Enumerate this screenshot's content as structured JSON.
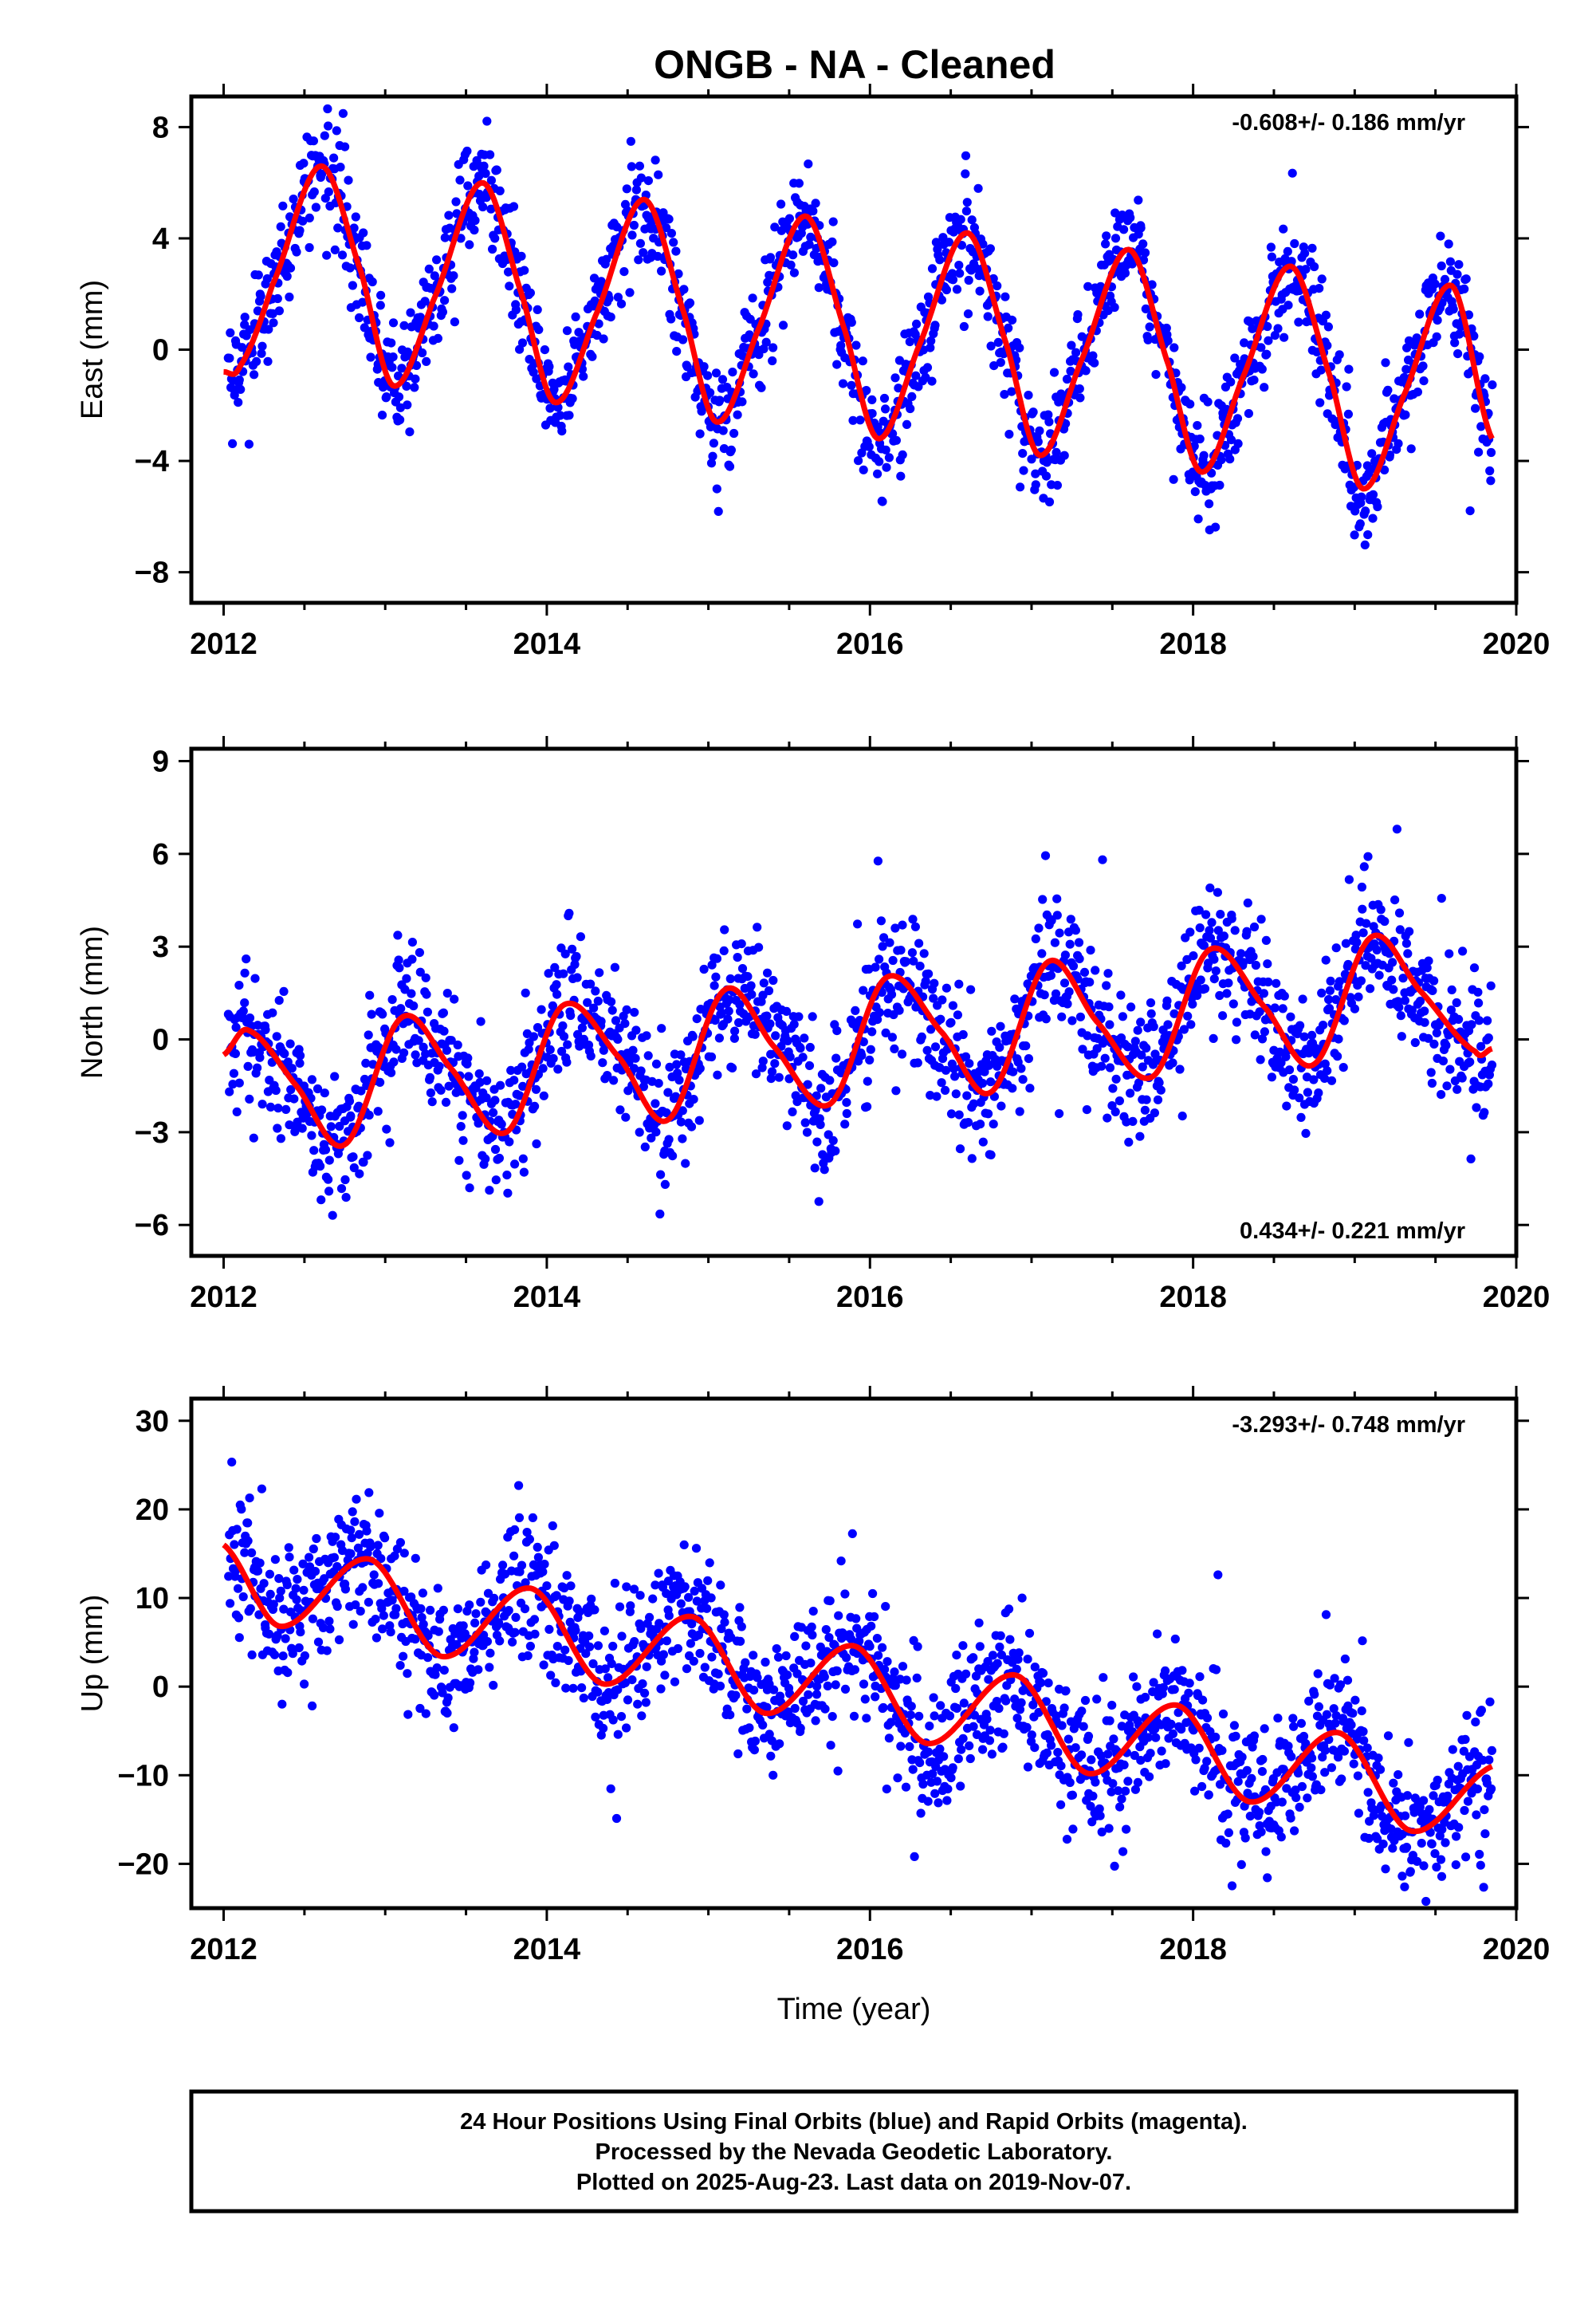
{
  "chart_data": {
    "type": "scatter",
    "title": "ONGB  - NA - Cleaned",
    "xlabel": "Time (year)",
    "xlim": [
      2011.8,
      2020.0
    ],
    "x_ticks": [
      "2012",
      "2014",
      "2016",
      "2018",
      "2020"
    ],
    "grid": false,
    "colors": {
      "points": "#0000ff",
      "fit": "#ff0000",
      "frame": "#000000"
    },
    "panels": [
      {
        "ylabel": "East (mm)",
        "ylim": [
          -9.1,
          9.1
        ],
        "y_ticks": [
          "8",
          "4",
          "0",
          "-4",
          "-8"
        ],
        "rate": "-0.608+/- 0.186 mm/yr",
        "rate_position": "top-right",
        "trend_mm_per_yr": -0.608,
        "fit": {
          "x": [
            2012.0,
            2012.1,
            2012.3,
            2012.6,
            2012.85,
            2013.05,
            2013.3,
            2013.6,
            2013.85,
            2014.05,
            2014.3,
            2014.6,
            2014.85,
            2015.05,
            2015.3,
            2015.6,
            2015.85,
            2016.05,
            2016.3,
            2016.6,
            2016.85,
            2017.05,
            2017.3,
            2017.6,
            2017.85,
            2018.05,
            2018.3,
            2018.6,
            2018.85,
            2019.05,
            2019.3,
            2019.6,
            2019.85
          ],
          "y": [
            -0.8,
            -0.6,
            2.3,
            6.6,
            2.8,
            -1.3,
            1.8,
            6.0,
            1.9,
            -1.9,
            1.2,
            5.4,
            1.3,
            -2.6,
            0.6,
            4.8,
            0.6,
            -3.2,
            0.1,
            4.2,
            0.1,
            -3.8,
            -0.5,
            3.6,
            -0.6,
            -4.4,
            -1.1,
            3.0,
            -1.0,
            -5.0,
            -1.7,
            2.3,
            -3.2
          ]
        },
        "scatter_sd_mm": 1.0
      },
      {
        "ylabel": "North (mm)",
        "ylim": [
          -7.0,
          9.4
        ],
        "y_ticks": [
          "9",
          "6",
          "3",
          "0",
          "-3",
          "-6"
        ],
        "rate": "0.434+/- 0.221 mm/yr",
        "rate_position": "bottom-right",
        "trend_mm_per_yr": 0.434,
        "fit": {
          "x": [
            2012.0,
            2012.15,
            2012.45,
            2012.75,
            2013.1,
            2013.4,
            2013.75,
            2014.1,
            2014.45,
            2014.75,
            2015.1,
            2015.4,
            2015.75,
            2016.1,
            2016.45,
            2016.75,
            2017.1,
            2017.4,
            2017.75,
            2018.1,
            2018.45,
            2018.75,
            2019.1,
            2019.4,
            2019.75,
            2019.85
          ],
          "y": [
            -0.5,
            0.3,
            -1.5,
            -3.4,
            0.7,
            -0.9,
            -3.0,
            1.1,
            -0.6,
            -2.6,
            1.6,
            -0.2,
            -2.1,
            2.0,
            0.2,
            -1.7,
            2.5,
            0.6,
            -1.2,
            2.9,
            1.0,
            -0.8,
            3.3,
            1.6,
            -0.4,
            -0.3
          ]
        },
        "scatter_sd_mm": 1.1
      },
      {
        "ylabel": "Up (mm)",
        "ylim": [
          -25.0,
          32.5
        ],
        "y_ticks": [
          "30",
          "20",
          "10",
          "0",
          "-10",
          "-20"
        ],
        "rate": "-3.293+/- 0.748 mm/yr",
        "rate_position": "top-right",
        "trend_mm_per_yr": -3.293,
        "fit": {
          "x": [
            2012.0,
            2012.35,
            2012.9,
            2013.35,
            2013.9,
            2014.35,
            2014.9,
            2015.35,
            2015.9,
            2016.35,
            2016.9,
            2017.35,
            2017.9,
            2018.35,
            2018.9,
            2019.35,
            2019.85
          ],
          "y": [
            16.0,
            6.8,
            14.4,
            3.4,
            11.1,
            0.3,
            7.9,
            -3.0,
            4.6,
            -6.4,
            1.3,
            -9.8,
            -2.1,
            -13.0,
            -5.2,
            -16.3,
            -9.0
          ]
        },
        "scatter_sd_mm": 4.0
      }
    ]
  },
  "footer": {
    "line1": "24 Hour Positions Using Final Orbits (blue) and Rapid Orbits (magenta).",
    "line2": "Processed by the Nevada Geodetic Laboratory.",
    "line3": "Plotted on 2025-Aug-23. Last data on 2019-Nov-07."
  }
}
